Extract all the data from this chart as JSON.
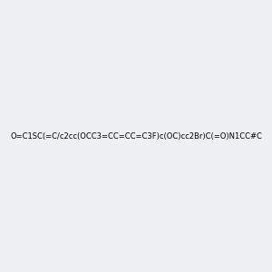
{
  "smiles": "O=C1SC(=C/c2cc(OCC3=CC=CC=C3F)c(OC)cc2Br)C(=O)N1CC#C",
  "title": "",
  "bg_color": "#eef0f2",
  "img_size": [
    300,
    300
  ],
  "atom_colors": {
    "S": "#cccc00",
    "N": "#0000ff",
    "O": "#ff0000",
    "Br": "#cc6600",
    "F": "#ff00ff",
    "C": "#1a1a1a",
    "H": "#336666"
  }
}
